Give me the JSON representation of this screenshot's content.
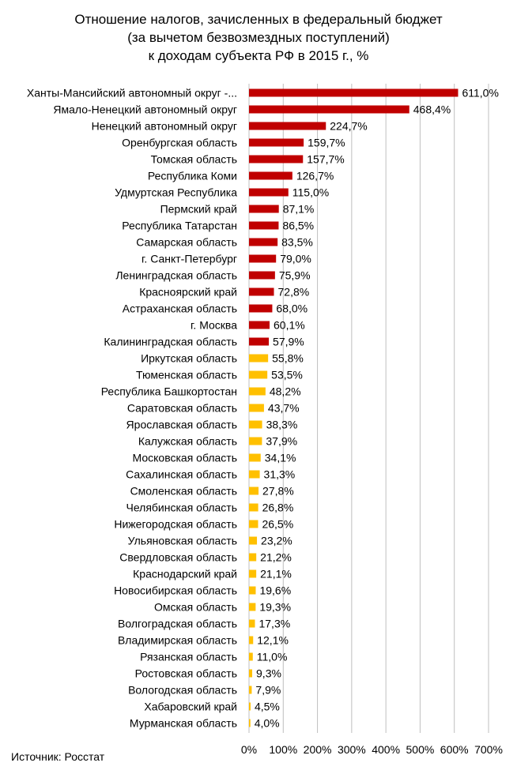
{
  "chart_data": {
    "type": "bar",
    "orientation": "horizontal",
    "title_lines": [
      "Отношение налогов, зачисленных в федеральный бюджет",
      "(за вычетом безвозмездных поступлений)",
      "к доходам субъекта РФ в 2015 г., %"
    ],
    "xlim": [
      0,
      700
    ],
    "x_ticks": [
      0,
      100,
      200,
      300,
      400,
      500,
      600,
      700
    ],
    "x_tick_labels": [
      "0%",
      "100%",
      "200%",
      "300%",
      "400%",
      "500%",
      "600%",
      "700%"
    ],
    "grid": "vertical",
    "colors": {
      "high": "#c00000",
      "low": "#ffc000",
      "grid": "#bfbfbf"
    },
    "categories": [
      "Ханты-Мансийский автономный округ -...",
      "Ямало-Ненецкий автономный округ",
      "Ненецкий автономный округ",
      "Оренбургская область",
      "Томская область",
      "Республика Коми",
      "Удмуртская Республика",
      "Пермский край",
      "Республика Татарстан",
      "Самарская область",
      "г. Санкт-Петербург",
      "Ленинградская область",
      "Красноярский край",
      "Астраханская область",
      "г. Москва",
      "Калининградская область",
      "Иркутская область",
      "Тюменская область",
      "Республика Башкортостан",
      "Саратовская область",
      "Ярославская область",
      "Калужская область",
      "Московская область",
      "Сахалинская область",
      "Смоленская область",
      "Челябинская область",
      "Нижегородская область",
      "Ульяновская область",
      "Свердловская область",
      "Краснодарский край",
      "Новосибирская область",
      "Омская область",
      "Волгоградская область",
      "Владимирская область",
      "Рязанская область",
      "Ростовская область",
      "Вологодская область",
      "Хабаровский край",
      "Мурманская область"
    ],
    "values": [
      611.0,
      468.4,
      224.7,
      159.7,
      157.7,
      126.7,
      115.0,
      87.1,
      86.5,
      83.5,
      79.0,
      75.9,
      72.8,
      68.0,
      60.1,
      57.9,
      55.8,
      53.5,
      48.2,
      43.7,
      38.3,
      37.9,
      34.1,
      31.3,
      27.8,
      26.8,
      26.5,
      23.2,
      21.2,
      21.1,
      19.6,
      19.3,
      17.3,
      12.1,
      11.0,
      9.3,
      7.9,
      4.5,
      4.0
    ],
    "value_labels": [
      "611,0%",
      "468,4%",
      "224,7%",
      "159,7%",
      "157,7%",
      "126,7%",
      "115,0%",
      "87,1%",
      "86,5%",
      "83,5%",
      "79,0%",
      "75,9%",
      "72,8%",
      "68,0%",
      "60,1%",
      "57,9%",
      "55,8%",
      "53,5%",
      "48,2%",
      "43,7%",
      "38,3%",
      "37,9%",
      "34,1%",
      "31,3%",
      "27,8%",
      "26,8%",
      "26,5%",
      "23,2%",
      "21,2%",
      "21,1%",
      "19,6%",
      "19,3%",
      "17,3%",
      "12,1%",
      "11,0%",
      "9,3%",
      "7,9%",
      "4,5%",
      "4,0%"
    ],
    "highlight_count": 16
  },
  "source_text": "Источник:  Росстат"
}
